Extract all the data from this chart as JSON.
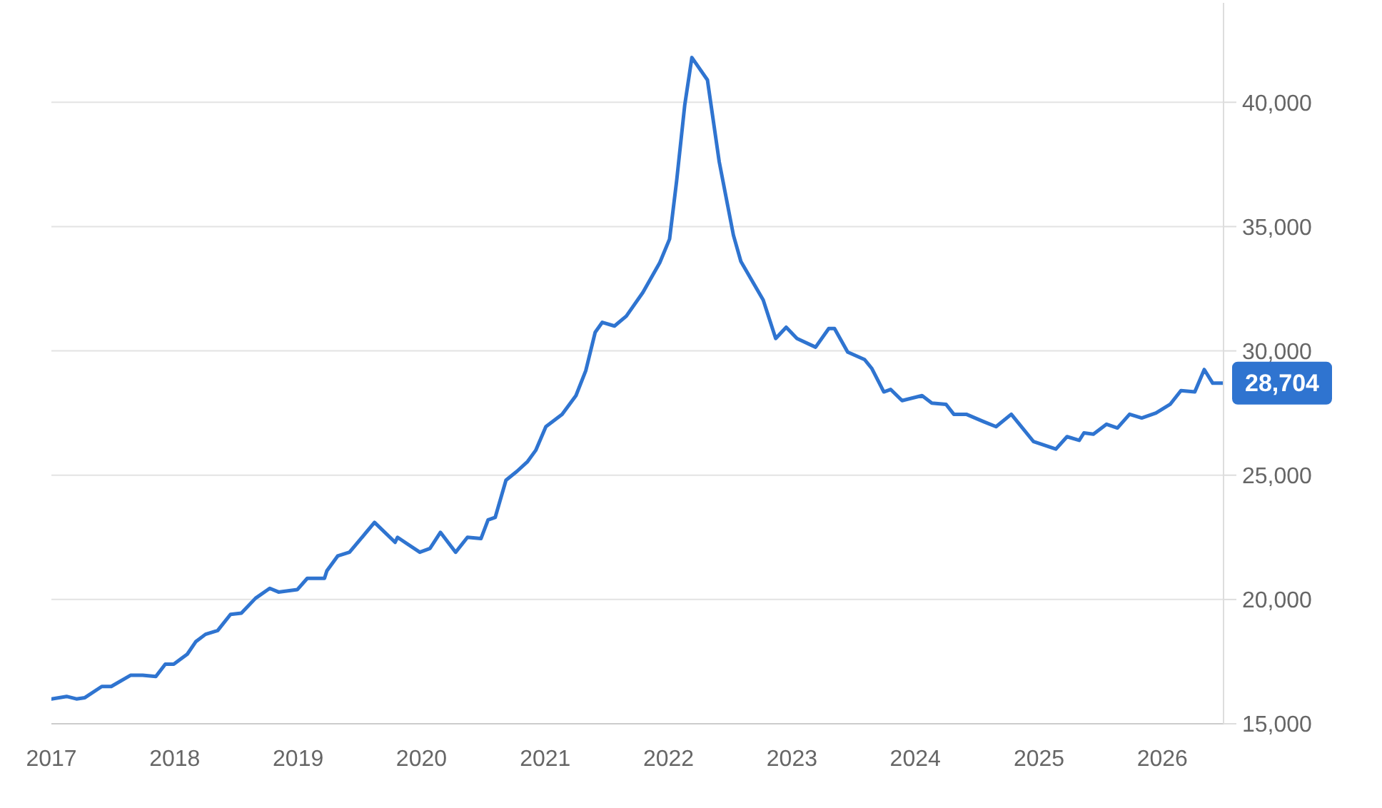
{
  "chart_data": {
    "type": "line",
    "x": [
      "2017-01-01",
      "2017-02-15",
      "2017-03-16",
      "2017-04-10",
      "2017-05-30",
      "2017-06-27",
      "2017-08-23",
      "2017-09-28",
      "2017-11-06",
      "2017-12-04",
      "2017-12-29",
      "2018-02-07",
      "2018-03-04",
      "2018-04-02",
      "2018-05-08",
      "2018-06-15",
      "2018-07-17",
      "2018-08-28",
      "2018-10-09",
      "2018-11-04",
      "2018-12-30",
      "2019-01-28",
      "2019-03-20",
      "2019-03-27",
      "2019-04-28",
      "2019-06-02",
      "2019-08-15",
      "2019-10-15",
      "2019-10-22",
      "2019-12-27",
      "2020-01-26",
      "2020-02-26",
      "2020-04-11",
      "2020-05-16",
      "2020-06-25",
      "2020-07-16",
      "2020-08-06",
      "2020-09-07",
      "2020-10-09",
      "2020-11-10",
      "2020-12-04",
      "2021-01-03",
      "2021-02-20",
      "2021-04-02",
      "2021-05-01",
      "2021-05-29",
      "2021-06-19",
      "2021-07-25",
      "2021-08-29",
      "2021-10-17",
      "2021-12-06",
      "2022-01-04",
      "2022-01-25",
      "2022-02-18",
      "2022-03-11",
      "2022-04-26",
      "2022-05-31",
      "2022-07-12",
      "2022-08-03",
      "2022-09-08",
      "2022-10-08",
      "2022-11-14",
      "2022-12-15",
      "2023-01-16",
      "2023-03-12",
      "2023-04-20",
      "2023-05-07",
      "2023-06-15",
      "2023-08-04",
      "2023-08-25",
      "2023-09-30",
      "2023-10-20",
      "2023-11-23",
      "2024-01-21",
      "2024-02-19",
      "2024-04-01",
      "2024-04-24",
      "2024-05-31",
      "2024-07-22",
      "2024-08-27",
      "2024-10-11",
      "2024-12-16",
      "2025-02-20",
      "2025-03-25",
      "2025-04-30",
      "2025-05-14",
      "2025-06-11",
      "2025-07-20",
      "2025-08-21",
      "2025-09-26",
      "2025-11-01",
      "2025-12-13",
      "2026-01-24",
      "2026-02-25",
      "2026-04-07",
      "2026-05-05",
      "2026-05-30",
      "2026-07-01"
    ],
    "series": [
      {
        "color": "#2f74d0",
        "values": [
          16000,
          16100,
          16000,
          16050,
          16500,
          16500,
          16950,
          16950,
          16900,
          17400,
          17400,
          17800,
          18300,
          18600,
          18750,
          19400,
          19450,
          20050,
          20450,
          20300,
          20400,
          20850,
          20850,
          21150,
          21750,
          21900,
          23100,
          22300,
          22500,
          21900,
          22050,
          22700,
          21900,
          22500,
          22450,
          23200,
          23300,
          24800,
          25150,
          25550,
          26000,
          26950,
          27450,
          28200,
          29200,
          30750,
          31150,
          31000,
          31400,
          32350,
          33550,
          34500,
          36850,
          39900,
          41800,
          40900,
          37600,
          34650,
          33600,
          32750,
          32050,
          30500,
          30950,
          30500,
          30150,
          30900,
          30900,
          29950,
          29650,
          29300,
          28350,
          28450,
          28000,
          28200,
          27900,
          27850,
          27450,
          27450,
          27150,
          26950,
          27450,
          26350,
          26050,
          26550,
          26400,
          26700,
          26650,
          27050,
          26900,
          27450,
          27300,
          27500,
          27850,
          28400,
          28350,
          29250,
          28700,
          28704
        ],
        "value_labels": [
          null,
          null,
          null,
          null,
          null,
          null,
          null,
          null,
          null,
          null,
          null,
          null,
          null,
          null,
          null,
          null,
          null,
          null,
          null,
          null,
          null,
          null,
          null,
          null,
          null,
          null,
          null,
          null,
          null,
          null,
          null,
          null,
          null,
          null,
          null,
          null,
          null,
          null,
          null,
          null,
          null,
          null,
          null,
          null,
          null,
          null,
          null,
          null,
          null,
          null,
          null,
          null,
          null,
          null,
          null,
          null,
          null,
          null,
          null,
          null,
          null,
          null,
          null,
          null,
          null,
          null,
          null,
          null,
          null,
          null,
          null,
          null,
          null,
          null,
          null,
          null,
          null,
          null,
          null,
          null,
          null,
          null,
          null,
          null,
          null,
          null,
          null,
          null,
          null,
          null,
          null,
          null,
          null,
          null,
          null,
          null,
          null,
          "28,704"
        ]
      }
    ],
    "xlim": [
      "2017-01-01",
      "2026-07-01"
    ],
    "xticks": [
      "2017",
      "2018",
      "2019",
      "2020",
      "2021",
      "2022",
      "2023",
      "2024",
      "2025",
      "2026"
    ],
    "ylim": [
      15000,
      44000
    ],
    "yticks": [
      {
        "value": 15000,
        "label": "15,000"
      },
      {
        "value": 20000,
        "label": "20,000"
      },
      {
        "value": 25000,
        "label": "25,000"
      },
      {
        "value": 30000,
        "label": "30,000"
      },
      {
        "value": 35000,
        "label": "35,000"
      },
      {
        "value": 40000,
        "label": "40,000"
      }
    ],
    "grid": "y",
    "marker": "none",
    "line_style": "solid"
  }
}
